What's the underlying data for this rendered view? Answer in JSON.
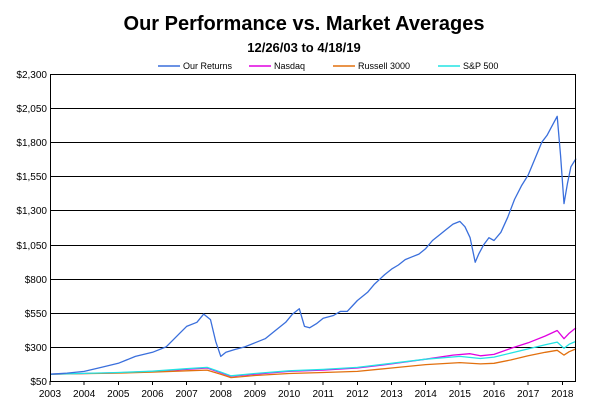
{
  "chart_data": {
    "type": "line",
    "title": "Our Performance vs. Market Averages",
    "subtitle": "12/26/03 to 4/18/19",
    "xlabel": "",
    "ylabel": "",
    "xlim": [
      2003,
      2018.4
    ],
    "ylim": [
      50,
      2300
    ],
    "y_ticks": [
      50,
      300,
      550,
      800,
      1050,
      1300,
      1550,
      1800,
      2050,
      2300
    ],
    "y_tick_labels": [
      "$50",
      "$300",
      "$550",
      "$800",
      "$1,050",
      "$1,300",
      "$1,550",
      "$1,800",
      "$2,050",
      "$2,300"
    ],
    "x_ticks": [
      2003,
      2004,
      2005,
      2006,
      2007,
      2008,
      2009,
      2010,
      2011,
      2012,
      2013,
      2014,
      2015,
      2016,
      2017,
      2018
    ],
    "x_tick_labels": [
      "2003",
      "2004",
      "2005",
      "2006",
      "2007",
      "2008",
      "2009",
      "2010",
      "2011",
      "2012",
      "2013",
      "2014",
      "2015",
      "2016",
      "2017",
      "2018"
    ],
    "grid": true,
    "legend_position": "top",
    "series": [
      {
        "name": "Our Returns",
        "color": "#3a6fdc",
        "points": [
          [
            2003.0,
            100
          ],
          [
            2003.5,
            108
          ],
          [
            2004.0,
            120
          ],
          [
            2004.5,
            150
          ],
          [
            2005.0,
            180
          ],
          [
            2005.5,
            230
          ],
          [
            2006.0,
            260
          ],
          [
            2006.4,
            300
          ],
          [
            2006.8,
            400
          ],
          [
            2007.0,
            450
          ],
          [
            2007.3,
            480
          ],
          [
            2007.5,
            540
          ],
          [
            2007.7,
            500
          ],
          [
            2007.85,
            340
          ],
          [
            2008.0,
            230
          ],
          [
            2008.15,
            260
          ],
          [
            2008.4,
            280
          ],
          [
            2008.7,
            300
          ],
          [
            2009.0,
            330
          ],
          [
            2009.3,
            360
          ],
          [
            2009.6,
            420
          ],
          [
            2009.9,
            480
          ],
          [
            2010.1,
            540
          ],
          [
            2010.3,
            580
          ],
          [
            2010.45,
            450
          ],
          [
            2010.6,
            440
          ],
          [
            2010.8,
            470
          ],
          [
            2011.0,
            510
          ],
          [
            2011.3,
            530
          ],
          [
            2011.5,
            560
          ],
          [
            2011.7,
            560
          ],
          [
            2011.85,
            600
          ],
          [
            2012.0,
            640
          ],
          [
            2012.3,
            700
          ],
          [
            2012.5,
            760
          ],
          [
            2012.8,
            830
          ],
          [
            2013.0,
            870
          ],
          [
            2013.2,
            900
          ],
          [
            2013.4,
            940
          ],
          [
            2013.6,
            960
          ],
          [
            2013.8,
            980
          ],
          [
            2014.0,
            1020
          ],
          [
            2014.2,
            1080
          ],
          [
            2014.4,
            1120
          ],
          [
            2014.6,
            1160
          ],
          [
            2014.8,
            1200
          ],
          [
            2015.0,
            1220
          ],
          [
            2015.15,
            1180
          ],
          [
            2015.3,
            1100
          ],
          [
            2015.45,
            920
          ],
          [
            2015.55,
            980
          ],
          [
            2015.7,
            1050
          ],
          [
            2015.85,
            1100
          ],
          [
            2016.0,
            1080
          ],
          [
            2016.2,
            1140
          ],
          [
            2016.4,
            1250
          ],
          [
            2016.6,
            1380
          ],
          [
            2016.8,
            1480
          ],
          [
            2017.0,
            1560
          ],
          [
            2017.2,
            1680
          ],
          [
            2017.4,
            1800
          ],
          [
            2017.55,
            1850
          ],
          [
            2017.7,
            1920
          ],
          [
            2017.85,
            1990
          ],
          [
            2017.95,
            1700
          ],
          [
            2018.05,
            1350
          ],
          [
            2018.15,
            1500
          ],
          [
            2018.25,
            1620
          ],
          [
            2018.4,
            1680
          ]
        ]
      },
      {
        "name": "Nasdaq",
        "color": "#e000e0",
        "points": [
          [
            2003.0,
            100
          ],
          [
            2004.0,
            105
          ],
          [
            2005.0,
            110
          ],
          [
            2006.0,
            120
          ],
          [
            2007.0,
            135
          ],
          [
            2007.6,
            145
          ],
          [
            2008.0,
            110
          ],
          [
            2008.3,
            85
          ],
          [
            2009.0,
            100
          ],
          [
            2010.0,
            120
          ],
          [
            2011.0,
            130
          ],
          [
            2012.0,
            145
          ],
          [
            2013.0,
            175
          ],
          [
            2014.0,
            210
          ],
          [
            2014.8,
            240
          ],
          [
            2015.3,
            250
          ],
          [
            2015.6,
            235
          ],
          [
            2016.0,
            245
          ],
          [
            2016.5,
            290
          ],
          [
            2017.0,
            330
          ],
          [
            2017.5,
            380
          ],
          [
            2017.85,
            420
          ],
          [
            2018.05,
            360
          ],
          [
            2018.2,
            400
          ],
          [
            2018.4,
            440
          ]
        ]
      },
      {
        "name": "Russell 3000",
        "color": "#e2700e",
        "points": [
          [
            2003.0,
            100
          ],
          [
            2004.0,
            104
          ],
          [
            2005.0,
            108
          ],
          [
            2006.0,
            115
          ],
          [
            2007.0,
            125
          ],
          [
            2007.6,
            130
          ],
          [
            2008.0,
            100
          ],
          [
            2008.3,
            75
          ],
          [
            2009.0,
            90
          ],
          [
            2010.0,
            105
          ],
          [
            2011.0,
            112
          ],
          [
            2012.0,
            120
          ],
          [
            2013.0,
            145
          ],
          [
            2014.0,
            170
          ],
          [
            2015.0,
            185
          ],
          [
            2015.6,
            175
          ],
          [
            2016.0,
            180
          ],
          [
            2016.5,
            205
          ],
          [
            2017.0,
            235
          ],
          [
            2017.5,
            260
          ],
          [
            2017.85,
            275
          ],
          [
            2018.05,
            240
          ],
          [
            2018.2,
            265
          ],
          [
            2018.4,
            285
          ]
        ]
      },
      {
        "name": "S&P 500",
        "color": "#22e3e3",
        "points": [
          [
            2003.0,
            100
          ],
          [
            2004.0,
            106
          ],
          [
            2005.0,
            112
          ],
          [
            2006.0,
            122
          ],
          [
            2007.0,
            140
          ],
          [
            2007.6,
            150
          ],
          [
            2008.0,
            115
          ],
          [
            2008.3,
            88
          ],
          [
            2009.0,
            105
          ],
          [
            2010.0,
            125
          ],
          [
            2011.0,
            135
          ],
          [
            2012.0,
            150
          ],
          [
            2013.0,
            180
          ],
          [
            2014.0,
            210
          ],
          [
            2015.0,
            230
          ],
          [
            2015.6,
            215
          ],
          [
            2016.0,
            225
          ],
          [
            2016.5,
            255
          ],
          [
            2017.0,
            285
          ],
          [
            2017.5,
            315
          ],
          [
            2017.85,
            335
          ],
          [
            2018.05,
            290
          ],
          [
            2018.2,
            320
          ],
          [
            2018.4,
            340
          ]
        ]
      }
    ]
  }
}
